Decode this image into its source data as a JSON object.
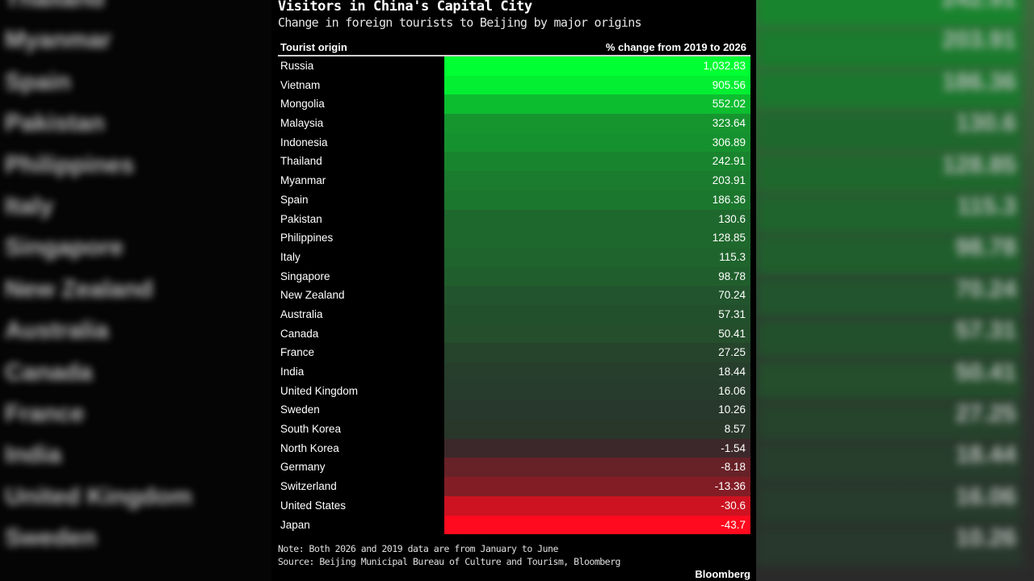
{
  "title": "Visitors in China's Capital City",
  "subtitle": "Change in foreign tourists to Beijing by major origins",
  "columns": {
    "origin": "Tourist origin",
    "change": "% change from 2019 to 2026"
  },
  "note": "Note: Both 2026 and 2019 data are from January to June",
  "source": "Source: Beijing Municipal Bureau of Culture and Tourism, Bloomberg",
  "brand": "Bloomberg",
  "colors": {
    "background": "#000000",
    "positive_max": "#00ff33",
    "neutral": "#2b2b2b",
    "negative_max": "#ff0a1e"
  },
  "chart_data": {
    "type": "table",
    "title": "Visitors in China's Capital City",
    "subtitle": "Change in foreign tourists to Beijing by major origins",
    "rows": [
      {
        "origin": "Russia",
        "change": "1,032.83",
        "value": 1032.83
      },
      {
        "origin": "Vietnam",
        "change": "905.56",
        "value": 905.56
      },
      {
        "origin": "Mongolia",
        "change": "552.02",
        "value": 552.02
      },
      {
        "origin": "Malaysia",
        "change": "323.64",
        "value": 323.64
      },
      {
        "origin": "Indonesia",
        "change": "306.89",
        "value": 306.89
      },
      {
        "origin": "Thailand",
        "change": "242.91",
        "value": 242.91
      },
      {
        "origin": "Myanmar",
        "change": "203.91",
        "value": 203.91
      },
      {
        "origin": "Spain",
        "change": "186.36",
        "value": 186.36
      },
      {
        "origin": "Pakistan",
        "change": "130.6",
        "value": 130.6
      },
      {
        "origin": "Philippines",
        "change": "128.85",
        "value": 128.85
      },
      {
        "origin": "Italy",
        "change": "115.3",
        "value": 115.3
      },
      {
        "origin": "Singapore",
        "change": "98.78",
        "value": 98.78
      },
      {
        "origin": "New Zealand",
        "change": "70.24",
        "value": 70.24
      },
      {
        "origin": "Australia",
        "change": "57.31",
        "value": 57.31
      },
      {
        "origin": "Canada",
        "change": "50.41",
        "value": 50.41
      },
      {
        "origin": "France",
        "change": "27.25",
        "value": 27.25
      },
      {
        "origin": "India",
        "change": "18.44",
        "value": 18.44
      },
      {
        "origin": "United Kingdom",
        "change": "16.06",
        "value": 16.06
      },
      {
        "origin": "Sweden",
        "change": "10.26",
        "value": 10.26
      },
      {
        "origin": "South Korea",
        "change": "8.57",
        "value": 8.57
      },
      {
        "origin": "North Korea",
        "change": "-1.54",
        "value": -1.54
      },
      {
        "origin": "Germany",
        "change": "-8.18",
        "value": -8.18
      },
      {
        "origin": "Switzerland",
        "change": "-13.36",
        "value": -13.36
      },
      {
        "origin": "United States",
        "change": "-30.6",
        "value": -30.6
      },
      {
        "origin": "Japan",
        "change": "-43.7",
        "value": -43.7
      }
    ]
  }
}
